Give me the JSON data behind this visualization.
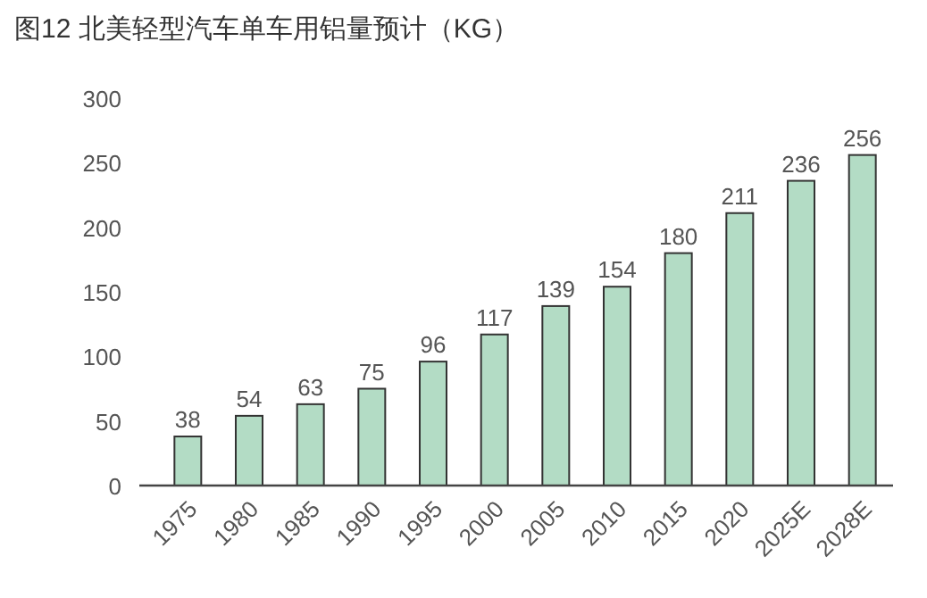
{
  "chart_data": {
    "type": "bar",
    "title": "图12 北美轻型汽车单车用铝量预计（KG）",
    "categories": [
      "1975",
      "1980",
      "1985",
      "1990",
      "1995",
      "2000",
      "2005",
      "2010",
      "2015",
      "2020",
      "2025E",
      "2028E"
    ],
    "values": [
      38,
      54,
      63,
      75,
      96,
      117,
      139,
      154,
      180,
      211,
      236,
      256
    ],
    "color": "#b3dcc5",
    "ylim": [
      0,
      300
    ],
    "yticks": [
      0,
      50,
      100,
      150,
      200,
      250,
      300
    ],
    "grid": false,
    "data_labels": true
  }
}
